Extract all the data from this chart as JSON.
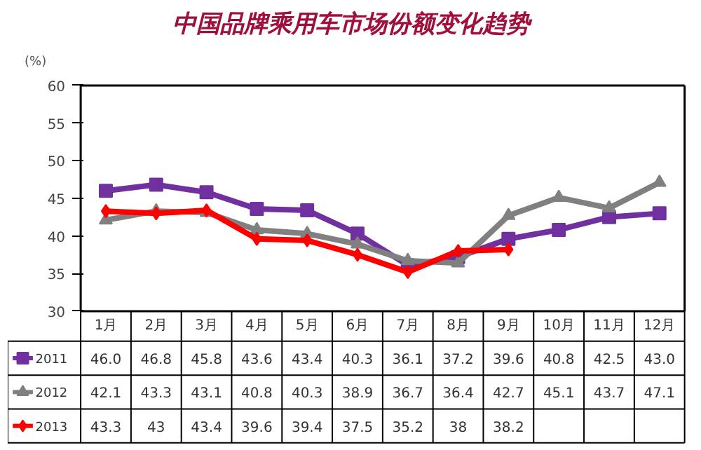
{
  "chart_data": {
    "type": "line",
    "title": "中国品牌乘用车市场份额变化趋势",
    "ylabel": "(%)",
    "categories": [
      "1月",
      "2月",
      "3月",
      "4月",
      "5月",
      "6月",
      "7月",
      "8月",
      "9月",
      "10月",
      "11月",
      "12月"
    ],
    "ylim": [
      30,
      60
    ],
    "yticks": [
      30,
      35,
      40,
      45,
      50,
      55,
      60
    ],
    "grid": false,
    "legend": "bottom",
    "series": [
      {
        "name": "2011",
        "color": "#7030a0",
        "marker": "square",
        "values": [
          46.0,
          46.8,
          45.8,
          43.6,
          43.4,
          40.3,
          36.1,
          37.2,
          39.6,
          40.8,
          42.5,
          43.0
        ],
        "value_labels": [
          "46.0",
          "46.8",
          "45.8",
          "43.6",
          "43.4",
          "40.3",
          "36.1",
          "37.2",
          "39.6",
          "40.8",
          "42.5",
          "43.0"
        ]
      },
      {
        "name": "2012",
        "color": "#808080",
        "marker": "triangle",
        "values": [
          42.1,
          43.3,
          43.1,
          40.8,
          40.3,
          38.9,
          36.7,
          36.4,
          42.7,
          45.1,
          43.7,
          47.1
        ],
        "value_labels": [
          "42.1",
          "43.3",
          "43.1",
          "40.8",
          "40.3",
          "38.9",
          "36.7",
          "36.4",
          "42.7",
          "45.1",
          "43.7",
          "47.1"
        ]
      },
      {
        "name": "2013",
        "color": "#ff0000",
        "marker": "diamond",
        "values": [
          43.3,
          43,
          43.4,
          39.6,
          39.4,
          37.5,
          35.2,
          38,
          38.2,
          null,
          null,
          null
        ],
        "value_labels": [
          "43.3",
          "43",
          "43.4",
          "39.6",
          "39.4",
          "37.5",
          "35.2",
          "38",
          "38.2",
          null,
          null,
          null
        ]
      }
    ]
  }
}
